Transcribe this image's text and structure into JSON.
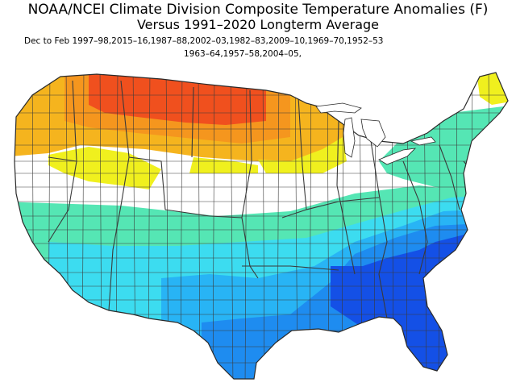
{
  "header": {
    "title": "NOAA/NCEI Climate Division Composite Temperature Anomalies (F)",
    "subtitle": "Versus 1991–2020 Longterm Average",
    "years_line1": "Dec to Feb   1997–98,2015–16,1987–88,2002–03,1982–83,2009–10,1969–70,1952–53",
    "years_line2": "1963–64,1957–58,2004–05,"
  },
  "map": {
    "colors": {
      "warm_strong": "#f0501e",
      "warm_orange": "#f5961e",
      "warm_amber": "#f5b41e",
      "warm_yellow": "#f0f01e",
      "neutral": "#ffffff",
      "cool_teal": "#55e6b4",
      "cool_aqua": "#3cdcf0",
      "cool_sky": "#28b4f5",
      "cool_blue": "#1e8cf0",
      "cold_blue": "#1450e6"
    }
  }
}
